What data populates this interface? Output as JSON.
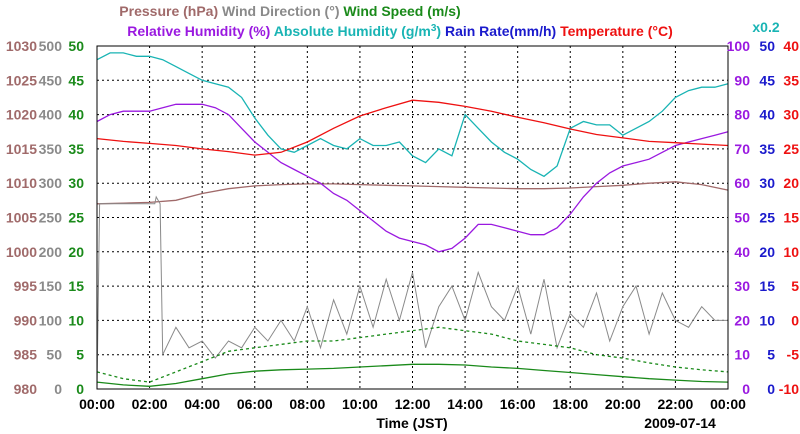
{
  "chart_data": {
    "type": "line",
    "title": "",
    "xlabel": "Time (JST)",
    "date": "2009-07-14",
    "x_ticks": [
      "00:00",
      "02:00",
      "04:00",
      "06:00",
      "08:00",
      "10:00",
      "12:00",
      "14:00",
      "16:00",
      "18:00",
      "20:00",
      "22:00",
      "00:00"
    ],
    "xlim_hours": [
      0,
      24
    ],
    "grid": true,
    "legend": {
      "row1": [
        {
          "label": "Pressure (hPa)",
          "color": "#a06a6a"
        },
        {
          "label": "Wind Direction (°)",
          "color": "#8a8a8a"
        },
        {
          "label": "Wind Speed (m/s)",
          "color": "#1a8a1a"
        }
      ],
      "row2": [
        {
          "label": "Relative Humidity (%)",
          "color": "#9a19e0"
        },
        {
          "label": "Absolute Humidity (g/m",
          "sup": "3",
          "close": ")",
          "color": "#19b4b4"
        },
        {
          "label": "Rain Rate(mm/h)",
          "color": "#1a1acc"
        },
        {
          "label": "Temperature (°C)",
          "color": "#ee1111"
        }
      ],
      "factor_label": "x0.2"
    },
    "axes": {
      "pressure": {
        "range": [
          980,
          1030
        ],
        "ticks": [
          "1030",
          "1025",
          "1020",
          "1015",
          "1010",
          "1005",
          "1000",
          "995",
          "990",
          "985",
          "980"
        ],
        "color": "#a06a6a"
      },
      "wind_direction": {
        "range": [
          0,
          500
        ],
        "ticks": [
          "500",
          "450",
          "400",
          "350",
          "300",
          "250",
          "200",
          "150",
          "100",
          "50",
          "0"
        ],
        "color": "#8a8a8a"
      },
      "wind_speed": {
        "range": [
          0,
          50
        ],
        "ticks": [
          "50",
          "45",
          "40",
          "35",
          "30",
          "25",
          "20",
          "15",
          "10",
          "5",
          "0"
        ],
        "color": "#1a8a1a"
      },
      "humidity": {
        "range": [
          0,
          100
        ],
        "ticks": [
          "100",
          "90",
          "80",
          "70",
          "60",
          "50",
          "40",
          "30",
          "20",
          "10",
          "0"
        ],
        "color": "#9a19e0"
      },
      "rain_rate": {
        "range": [
          0,
          50
        ],
        "ticks": [
          "50",
          "45",
          "40",
          "35",
          "30",
          "25",
          "20",
          "15",
          "10",
          "5",
          "0"
        ],
        "color": "#1a1acc"
      },
      "temperature": {
        "range": [
          -10,
          40
        ],
        "ticks": [
          "40",
          "35",
          "30",
          "25",
          "20",
          "15",
          "10",
          "5",
          "0",
          "-5",
          "-10"
        ],
        "color": "#ee1111"
      }
    },
    "series": [
      {
        "name": "Pressure (hPa)",
        "axis": "pressure",
        "color": "#a06a6a",
        "x": [
          0,
          1,
          2,
          3,
          4,
          5,
          6,
          7,
          8,
          9,
          10,
          11,
          12,
          13,
          14,
          15,
          16,
          17,
          18,
          19,
          20,
          21,
          22,
          23,
          24
        ],
        "values": [
          1007.0,
          1007.1,
          1007.2,
          1007.5,
          1008.5,
          1009.2,
          1009.6,
          1009.8,
          1009.9,
          1009.9,
          1009.8,
          1009.7,
          1009.6,
          1009.5,
          1009.4,
          1009.3,
          1009.2,
          1009.2,
          1009.3,
          1009.5,
          1009.7,
          1010.0,
          1010.2,
          1009.8,
          1009.0
        ]
      },
      {
        "name": "Absolute Humidity (g/m3) x0.2",
        "axis": "humidity",
        "color": "#19b4b4",
        "x": [
          0,
          0.5,
          1,
          1.5,
          2,
          2.5,
          3,
          3.5,
          4,
          4.5,
          5,
          5.5,
          6,
          6.5,
          7,
          7.5,
          8,
          8.5,
          9,
          9.5,
          10,
          10.5,
          11,
          11.5,
          12,
          12.5,
          13,
          13.5,
          14,
          14.5,
          15,
          15.5,
          16,
          16.5,
          17,
          17.5,
          18,
          18.5,
          19,
          19.5,
          20,
          20.5,
          21,
          21.5,
          22,
          22.5,
          23,
          23.5,
          24
        ],
        "values": [
          96,
          98,
          98,
          97,
          97,
          96,
          94,
          92,
          90,
          89,
          88,
          85,
          79,
          74,
          70,
          69,
          71,
          73,
          71,
          70,
          73,
          71,
          71,
          72,
          68,
          66,
          70,
          68,
          80,
          76,
          72,
          69,
          67,
          64,
          62,
          65,
          76,
          78,
          77,
          77,
          74,
          76,
          78,
          81,
          85,
          87,
          88,
          88,
          89
        ]
      },
      {
        "name": "Relative Humidity (%)",
        "axis": "humidity",
        "color": "#9a19e0",
        "x": [
          0,
          0.5,
          1,
          1.5,
          2,
          2.5,
          3,
          3.5,
          4,
          4.5,
          5,
          5.5,
          6,
          6.5,
          7,
          7.5,
          8,
          8.5,
          9,
          9.5,
          10,
          10.5,
          11,
          11.5,
          12,
          12.5,
          13,
          13.5,
          14,
          14.5,
          15,
          15.5,
          16,
          16.5,
          17,
          17.5,
          18,
          18.5,
          19,
          19.5,
          20,
          20.5,
          21,
          21.5,
          22,
          22.5,
          23,
          23.5,
          24
        ],
        "values": [
          78,
          80,
          81,
          81,
          81,
          82,
          83,
          83,
          83,
          82,
          80,
          76,
          72,
          69,
          66,
          64,
          62,
          60,
          57,
          55,
          52,
          49,
          46,
          44,
          43,
          42,
          40,
          41,
          44,
          48,
          48,
          47,
          46,
          45,
          45,
          47,
          51,
          56,
          60,
          63,
          65,
          66,
          67,
          69,
          71,
          72,
          73,
          74,
          75
        ]
      },
      {
        "name": "Temperature (°C)",
        "axis": "temperature",
        "color": "#ee1111",
        "x": [
          0,
          1,
          2,
          3,
          4,
          5,
          6,
          7,
          8,
          9,
          10,
          11,
          12,
          13,
          14,
          15,
          16,
          17,
          18,
          19,
          20,
          21,
          22,
          23,
          24
        ],
        "values": [
          26.5,
          26.1,
          25.8,
          25.5,
          25.0,
          24.6,
          24.1,
          24.5,
          26.0,
          28.0,
          29.8,
          31.0,
          32.1,
          31.8,
          31.2,
          30.5,
          29.6,
          28.8,
          27.9,
          27.1,
          26.6,
          26.1,
          25.9,
          25.7,
          25.5
        ]
      },
      {
        "name": "Wind Direction (°)",
        "axis": "wind_direction",
        "color": "#8a8a8a",
        "x": [
          0,
          0.1,
          0.2,
          0.3,
          2.2,
          2.25,
          2.4,
          2.5,
          3.0,
          3.5,
          4.0,
          4.5,
          5.0,
          5.5,
          6.0,
          6.5,
          7.0,
          7.5,
          8.0,
          8.5,
          9.0,
          9.5,
          10.0,
          10.5,
          11.0,
          11.5,
          12.0,
          12.5,
          13.0,
          13.5,
          14.0,
          14.5,
          15.0,
          15.5,
          16.0,
          16.5,
          17.0,
          17.5,
          18.0,
          18.5,
          19.0,
          19.5,
          20.0,
          20.5,
          21.0,
          21.5,
          22.0,
          22.5,
          23.0,
          23.5,
          24.0
        ],
        "values": [
          0,
          270,
          270,
          270,
          270,
          280,
          270,
          50,
          90,
          60,
          70,
          45,
          70,
          60,
          90,
          70,
          100,
          70,
          120,
          60,
          130,
          80,
          150,
          90,
          160,
          100,
          170,
          60,
          120,
          150,
          100,
          170,
          120,
          100,
          150,
          80,
          160,
          60,
          110,
          90,
          140,
          70,
          120,
          150,
          80,
          140,
          100,
          90,
          120,
          100,
          100
        ]
      },
      {
        "name": "Wind Speed (m/s)",
        "axis": "wind_speed",
        "color": "#1a8a1a",
        "x": [
          0,
          1,
          2,
          3,
          4,
          5,
          6,
          7,
          8,
          9,
          10,
          11,
          12,
          13,
          14,
          15,
          16,
          17,
          18,
          19,
          20,
          21,
          22,
          23,
          24
        ],
        "values": [
          1.0,
          0.6,
          0.4,
          0.8,
          1.5,
          2.2,
          2.6,
          2.8,
          2.9,
          3.0,
          3.2,
          3.4,
          3.6,
          3.6,
          3.5,
          3.2,
          3.0,
          2.7,
          2.4,
          2.1,
          1.8,
          1.5,
          1.3,
          1.1,
          1.0
        ]
      },
      {
        "name": "Wind Speed (m/s) gust",
        "axis": "wind_speed",
        "color": "#1a8a1a",
        "dashed": true,
        "x": [
          0,
          1,
          2,
          3,
          4,
          5,
          6,
          7,
          8,
          9,
          10,
          11,
          12,
          13,
          14,
          15,
          16,
          17,
          18,
          19,
          20,
          21,
          22,
          23,
          24
        ],
        "values": [
          2.5,
          1.5,
          1.0,
          2.5,
          4.0,
          5.5,
          6.0,
          6.5,
          7.0,
          7.0,
          7.5,
          8.0,
          8.5,
          9.0,
          8.5,
          8.0,
          7.0,
          6.5,
          6.0,
          5.0,
          4.5,
          3.8,
          3.2,
          2.8,
          2.5
        ]
      }
    ]
  }
}
